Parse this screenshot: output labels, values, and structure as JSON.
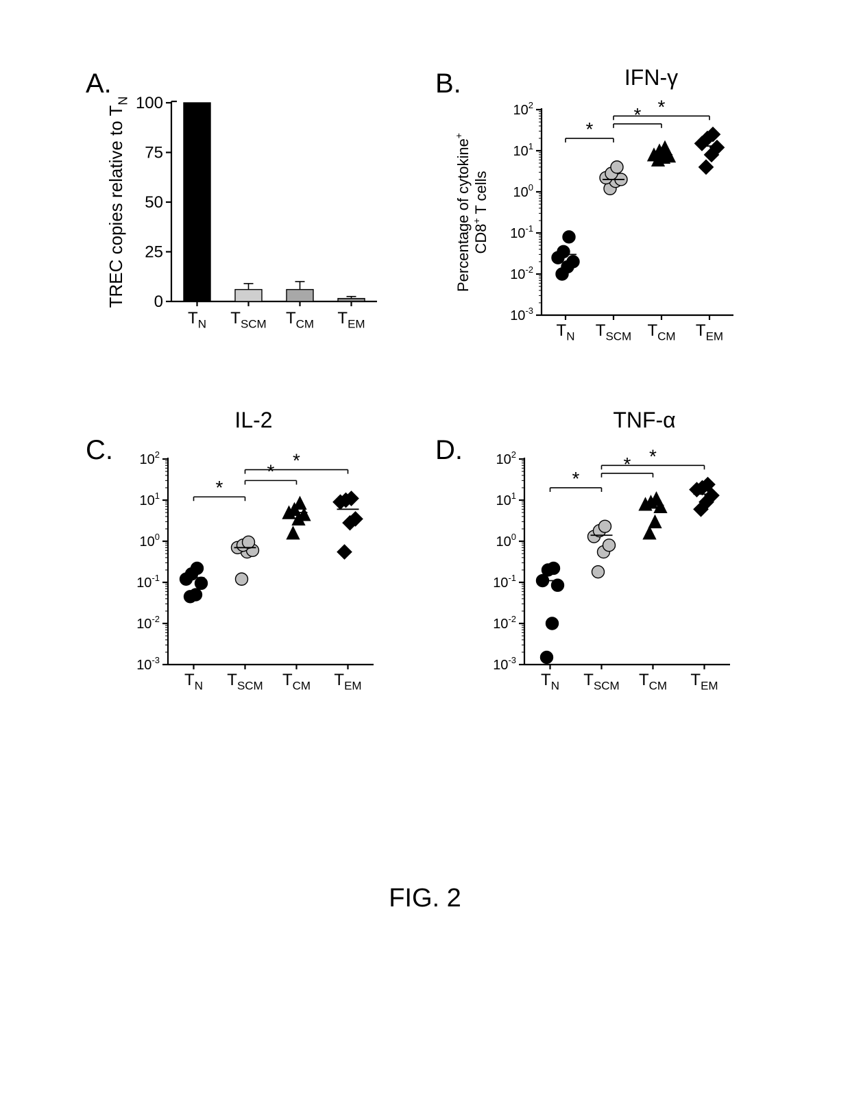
{
  "figure_caption": "FIG. 2",
  "caption_fontsize": 38,
  "panelA": {
    "label": "A.",
    "type": "bar",
    "ylabel_svg": "TREC copies relative to T",
    "ylabel_sub": "N",
    "categories": [
      "T_N",
      "T_SCM",
      "T_CM",
      "T_EM"
    ],
    "values": [
      100,
      6,
      6,
      1.5
    ],
    "errors": [
      0,
      3,
      4,
      1
    ],
    "bar_fills": [
      "#000000",
      "#cfcfcf",
      "#a8a8a8",
      "#8a8a8a"
    ],
    "bar_width": 0.52,
    "ylim": [
      0,
      100
    ],
    "yticks": [
      0,
      25,
      50,
      75,
      100
    ],
    "axis_color": "#000000",
    "axis_width": 2.2,
    "tick_fontsize": 24,
    "label_fontsize": 26,
    "cat_fontsize": 24
  },
  "scatter_common": {
    "categories": [
      "T_N",
      "T_SCM",
      "T_CM",
      "T_EM"
    ],
    "ylog_min": -3,
    "ylog_max": 2,
    "ytick_exponents": [
      -3,
      -2,
      -1,
      0,
      1,
      2
    ],
    "axis_color": "#000000",
    "axis_width": 2.2,
    "tick_fontsize": 20,
    "cat_fontsize": 24,
    "marker_size": 9,
    "markers": [
      "circle",
      "circle",
      "triangle",
      "diamond"
    ],
    "marker_fills": [
      "#000000",
      "#bfbfbf",
      "#000000",
      "#000000"
    ],
    "marker_strokes": [
      "#000000",
      "#000000",
      "#000000",
      "#000000"
    ],
    "sig_star": "*",
    "sig_fontsize": 28,
    "line_width": 1.6,
    "ylabel_line1": "Percentage of cytokine",
    "ylabel_line1_sup": "+",
    "ylabel_line2": "CD8",
    "ylabel_line2_sup": "+",
    "ylabel_line2_tail": " T cells",
    "ylabel_fontsize": 22
  },
  "panelB": {
    "label": "B.",
    "title": "IFN-γ",
    "points": {
      "0": [
        0.01,
        0.015,
        0.02,
        0.025,
        0.035,
        0.08
      ],
      "1": [
        1.2,
        1.8,
        2.0,
        2.2,
        2.8,
        4.0
      ],
      "2": [
        6.0,
        7.0,
        7.5,
        8.0,
        10.0,
        12.0
      ],
      "3": [
        4.0,
        8.0,
        12.0,
        15.0,
        20.0,
        25.0
      ]
    },
    "means": [
      0.03,
      2.0,
      8.0,
      13.0
    ],
    "sig_bars": [
      [
        0,
        1
      ],
      [
        1,
        2
      ],
      [
        1,
        3
      ]
    ],
    "sig_heights": [
      20,
      45,
      70
    ]
  },
  "panelC": {
    "label": "C.",
    "title": "IL-2",
    "points": {
      "0": [
        0.045,
        0.05,
        0.095,
        0.12,
        0.16,
        0.22
      ],
      "1": [
        0.12,
        0.55,
        0.6,
        0.7,
        0.8,
        0.95
      ],
      "2": [
        1.6,
        3.5,
        4.5,
        5.0,
        6.0,
        8.5
      ],
      "3": [
        0.55,
        2.8,
        3.5,
        9.0,
        10.0,
        11.0
      ]
    },
    "means": [
      0.13,
      0.7,
      5.0,
      6.0
    ],
    "sig_bars": [
      [
        0,
        1
      ],
      [
        1,
        2
      ],
      [
        1,
        3
      ]
    ],
    "sig_heights": [
      12,
      30,
      55
    ]
  },
  "panelD": {
    "label": "D.",
    "title": "TNF-α",
    "points": {
      "0": [
        0.0015,
        0.01,
        0.085,
        0.11,
        0.2,
        0.22
      ],
      "1": [
        0.18,
        0.55,
        0.8,
        1.3,
        1.8,
        2.3
      ],
      "2": [
        1.6,
        3.0,
        7.0,
        8.0,
        9.0,
        11.0
      ],
      "3": [
        6.0,
        9.0,
        13.0,
        18.0,
        20.0,
        24.0
      ]
    },
    "means": [
      0.11,
      1.4,
      7.5,
      14.0
    ],
    "sig_bars": [
      [
        0,
        1
      ],
      [
        1,
        2
      ],
      [
        1,
        3
      ]
    ],
    "sig_heights": [
      20,
      45,
      70
    ]
  }
}
